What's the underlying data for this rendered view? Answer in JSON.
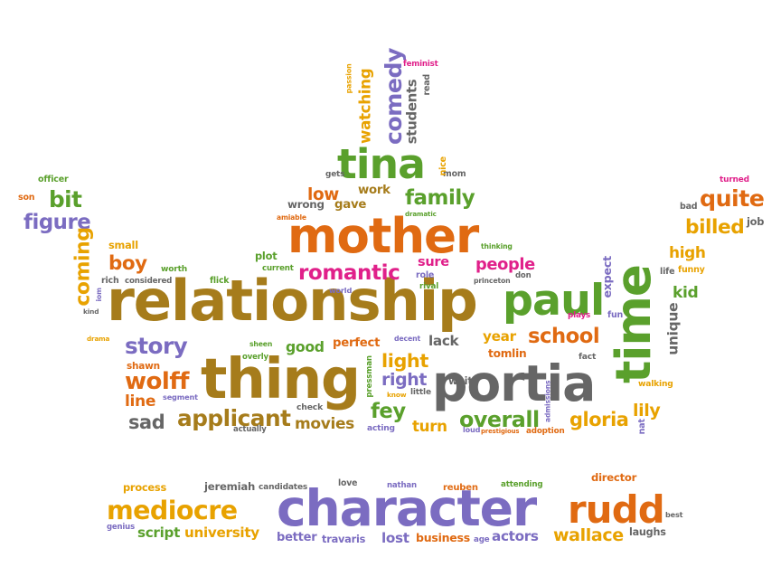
{
  "palette": {
    "brown": "#a67c1b",
    "orange": "#e06a12",
    "green": "#5aa02c",
    "purple": "#7b6cc1",
    "gray": "#666666",
    "pink": "#e0208a",
    "gold": "#e8a200"
  },
  "words": [
    {
      "text": "relationship",
      "color": "brown"
    },
    {
      "text": "character",
      "color": "purple"
    },
    {
      "text": "portia",
      "color": "gray"
    },
    {
      "text": "thing",
      "color": "brown"
    },
    {
      "text": "mother",
      "color": "orange"
    },
    {
      "text": "tina",
      "color": "green"
    },
    {
      "text": "time",
      "color": "green"
    },
    {
      "text": "paul",
      "color": "green"
    },
    {
      "text": "mediocre",
      "color": "gold"
    },
    {
      "text": "rudd",
      "color": "orange"
    },
    {
      "text": "applicant",
      "color": "brown"
    },
    {
      "text": "comedy",
      "color": "purple"
    },
    {
      "text": "romantic",
      "color": "pink"
    },
    {
      "text": "figure",
      "color": "purple"
    },
    {
      "text": "family",
      "color": "green"
    },
    {
      "text": "quite",
      "color": "orange"
    },
    {
      "text": "billed",
      "color": "gold"
    },
    {
      "text": "wolff",
      "color": "orange"
    },
    {
      "text": "story",
      "color": "purple"
    },
    {
      "text": "school",
      "color": "orange"
    },
    {
      "text": "people",
      "color": "pink"
    },
    {
      "text": "overall",
      "color": "green"
    },
    {
      "text": "gloria",
      "color": "gold"
    },
    {
      "text": "boy",
      "color": "orange"
    },
    {
      "text": "bit",
      "color": "green"
    },
    {
      "text": "low",
      "color": "orange"
    },
    {
      "text": "fey",
      "color": "green"
    },
    {
      "text": "light",
      "color": "gold"
    },
    {
      "text": "right",
      "color": "purple"
    },
    {
      "text": "wallace",
      "color": "gold"
    },
    {
      "text": "university",
      "color": "gold"
    },
    {
      "text": "script",
      "color": "green"
    },
    {
      "text": "travaris",
      "color": "purple"
    },
    {
      "text": "lost",
      "color": "purple"
    },
    {
      "text": "actors",
      "color": "purple"
    },
    {
      "text": "high",
      "color": "gold"
    },
    {
      "text": "kid",
      "color": "green"
    },
    {
      "text": "coming",
      "color": "gold"
    },
    {
      "text": "good",
      "color": "green"
    },
    {
      "text": "perfect",
      "color": "orange"
    },
    {
      "text": "sad",
      "color": "gray"
    },
    {
      "text": "movies",
      "color": "brown"
    },
    {
      "text": "turn",
      "color": "gold"
    },
    {
      "text": "lack",
      "color": "gray"
    },
    {
      "text": "year",
      "color": "gold"
    },
    {
      "text": "line",
      "color": "orange"
    },
    {
      "text": "walking",
      "color": "gold"
    },
    {
      "text": "lily",
      "color": "gold"
    },
    {
      "text": "sure",
      "color": "pink"
    },
    {
      "text": "watching",
      "color": "gold"
    },
    {
      "text": "students",
      "color": "gray"
    },
    {
      "text": "wrong",
      "color": "gray"
    },
    {
      "text": "gave",
      "color": "brown"
    },
    {
      "text": "work",
      "color": "brown"
    },
    {
      "text": "plot",
      "color": "green"
    },
    {
      "text": "shawn",
      "color": "orange"
    },
    {
      "text": "tomlin",
      "color": "orange"
    },
    {
      "text": "unique",
      "color": "gray"
    },
    {
      "text": "expect",
      "color": "purple"
    },
    {
      "text": "better",
      "color": "purple"
    },
    {
      "text": "business",
      "color": "orange"
    },
    {
      "text": "director",
      "color": "orange"
    },
    {
      "text": "jeremiah",
      "color": "gray"
    },
    {
      "text": "process",
      "color": "gold"
    },
    {
      "text": "laughs",
      "color": "gray"
    },
    {
      "text": "reuben",
      "color": "orange"
    },
    {
      "text": "attending",
      "color": "green"
    },
    {
      "text": "candidates",
      "color": "gray"
    },
    {
      "text": "nathan",
      "color": "purple"
    },
    {
      "text": "love",
      "color": "gray"
    },
    {
      "text": "age",
      "color": "purple"
    },
    {
      "text": "genius",
      "color": "purple"
    },
    {
      "text": "best",
      "color": "gray"
    },
    {
      "text": "son",
      "color": "orange"
    },
    {
      "text": "officer",
      "color": "green"
    },
    {
      "text": "job",
      "color": "gray"
    },
    {
      "text": "bad",
      "color": "gray"
    },
    {
      "text": "turned",
      "color": "pink"
    },
    {
      "text": "life",
      "color": "gray"
    },
    {
      "text": "funny",
      "color": "gold"
    },
    {
      "text": "fun",
      "color": "purple"
    },
    {
      "text": "plays",
      "color": "pink"
    },
    {
      "text": "fact",
      "color": "gray"
    },
    {
      "text": "nat",
      "color": "purple"
    },
    {
      "text": "adoption",
      "color": "orange"
    },
    {
      "text": "admissions",
      "color": "purple"
    },
    {
      "text": "prestigious",
      "color": "orange"
    },
    {
      "text": "loud",
      "color": "purple"
    },
    {
      "text": "weitz",
      "color": "gray"
    },
    {
      "text": "little",
      "color": "gray"
    },
    {
      "text": "know",
      "color": "gold"
    },
    {
      "text": "pressman",
      "color": "green"
    },
    {
      "text": "acting",
      "color": "purple"
    },
    {
      "text": "decent",
      "color": "purple"
    },
    {
      "text": "rival",
      "color": "green"
    },
    {
      "text": "role",
      "color": "purple"
    },
    {
      "text": "princeton",
      "color": "gray"
    },
    {
      "text": "don",
      "color": "gray"
    },
    {
      "text": "thinking",
      "color": "green"
    },
    {
      "text": "world",
      "color": "purple"
    },
    {
      "text": "current",
      "color": "green"
    },
    {
      "text": "amiable",
      "color": "orange"
    },
    {
      "text": "dramatic",
      "color": "green"
    },
    {
      "text": "mom",
      "color": "gray"
    },
    {
      "text": "nice",
      "color": "gold"
    },
    {
      "text": "gets",
      "color": "gray"
    },
    {
      "text": "feminist",
      "color": "pink"
    },
    {
      "text": "read",
      "color": "gray"
    },
    {
      "text": "passion",
      "color": "gold"
    },
    {
      "text": "small",
      "color": "gold"
    },
    {
      "text": "worth",
      "color": "green"
    },
    {
      "text": "flick",
      "color": "green"
    },
    {
      "text": "rich",
      "color": "gray"
    },
    {
      "text": "considered",
      "color": "gray"
    },
    {
      "text": "kind",
      "color": "gray"
    },
    {
      "text": "drama",
      "color": "gold"
    },
    {
      "text": "sheen",
      "color": "green"
    },
    {
      "text": "overly",
      "color": "green"
    },
    {
      "text": "segment",
      "color": "purple"
    },
    {
      "text": "check",
      "color": "gray"
    },
    {
      "text": "actually",
      "color": "gray"
    },
    {
      "text": "iom",
      "color": "purple"
    }
  ]
}
